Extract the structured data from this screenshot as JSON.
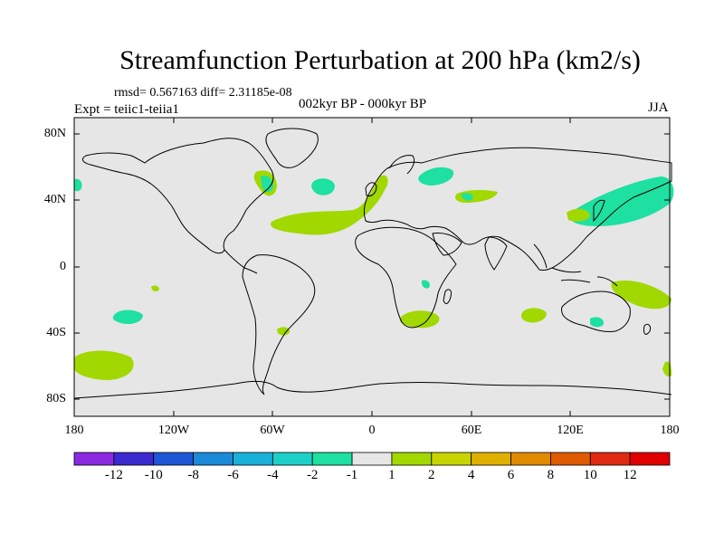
{
  "title": "Streamfunction Perturbation at 200 hPa (km2/s)",
  "stats": "rmsd= 0.567163 diff= 2.31185e-08",
  "expt": "Expt = teiic1-teiia1",
  "period": "002kyr BP - 000kyr BP",
  "season": "JJA",
  "lat_ticks": [
    "80N",
    "40N",
    "0",
    "40S",
    "80S"
  ],
  "lon_ticks": [
    "180",
    "120W",
    "60W",
    "0",
    "60E",
    "120E",
    "180"
  ],
  "colorbar": {
    "labels": [
      "-12",
      "-10",
      "-8",
      "-6",
      "-4",
      "-2",
      "-1",
      "1",
      "2",
      "4",
      "6",
      "8",
      "10",
      "12"
    ],
    "colors": [
      "#8a2be2",
      "#3b2ad0",
      "#1e56d8",
      "#1a8ad8",
      "#19b0d9",
      "#1cd0c8",
      "#1ee0a0",
      "#e6e6e6",
      "#a0d800",
      "#c8d400",
      "#e0b000",
      "#e08a00",
      "#e05a00",
      "#e02a10",
      "#e00000"
    ]
  },
  "colors": {
    "background": "#e6e6e6",
    "positive": "#a0d800",
    "negative": "#1ee0a0",
    "coast": "#000000"
  }
}
